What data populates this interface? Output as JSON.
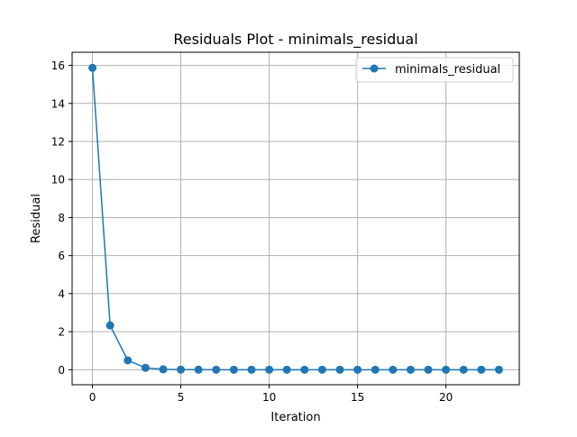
{
  "chart_data": {
    "type": "line",
    "title": "Residuals Plot - minimals_residual",
    "xlabel": "Iteration",
    "ylabel": "Residual",
    "xlim": [
      -1.15,
      24.15
    ],
    "ylim": [
      -0.79,
      16.69
    ],
    "xticks": [
      0,
      5,
      10,
      15,
      20
    ],
    "yticks": [
      0,
      2,
      4,
      6,
      8,
      10,
      12,
      14,
      16
    ],
    "grid": true,
    "legend_position": "top-right",
    "series": [
      {
        "name": "minimals_residual",
        "color": "#1f77b4",
        "marker": "circle",
        "x": [
          0,
          1,
          2,
          3,
          4,
          5,
          6,
          7,
          8,
          9,
          10,
          11,
          12,
          13,
          14,
          15,
          16,
          17,
          18,
          19,
          20,
          21,
          22,
          23
        ],
        "y": [
          15.87,
          2.33,
          0.49,
          0.1,
          0.02,
          0.005,
          0.001,
          0,
          0,
          0,
          0,
          0,
          0,
          0,
          0,
          0,
          0,
          0,
          0,
          0,
          0,
          0,
          0,
          0
        ]
      }
    ]
  }
}
